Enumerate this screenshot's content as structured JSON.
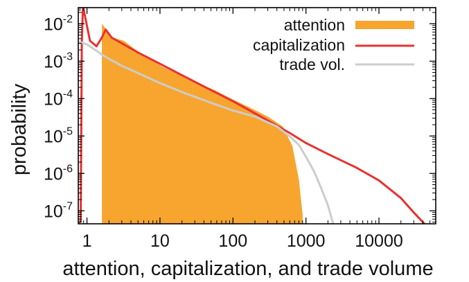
{
  "chart_data": {
    "type": "area",
    "xlabel": "attention, capitalization, and trade volume",
    "ylabel": "probability",
    "xscale": "log",
    "yscale": "log",
    "xlim": [
      0.76,
      60000
    ],
    "ylim": [
      4.5e-08,
      0.027
    ],
    "x_ticks": [
      1,
      10,
      100,
      1000,
      10000
    ],
    "x_tick_labels": [
      "1",
      "10",
      "100",
      "1000",
      "10000"
    ],
    "y_ticks": [
      {
        "value": 0.01,
        "base": "10",
        "exp": "-2"
      },
      {
        "value": 0.001,
        "base": "10",
        "exp": "-3"
      },
      {
        "value": 0.0001,
        "base": "10",
        "exp": "-4"
      },
      {
        "value": 1e-05,
        "base": "10",
        "exp": "-5"
      },
      {
        "value": 1e-06,
        "base": "10",
        "exp": "-6"
      },
      {
        "value": 1e-07,
        "base": "10",
        "exp": "-7"
      }
    ],
    "legend_position": "top-right",
    "series": [
      {
        "name": "attention",
        "style": "filled-area",
        "color": "#f7a52e",
        "x": [
          1.6,
          1.6,
          2.2,
          2.2,
          3.2,
          4.5,
          7,
          11,
          18,
          30,
          55,
          100,
          170,
          300,
          480,
          650,
          800,
          900,
          900
        ],
        "y": [
          4e-08,
          0.01,
          0.0045,
          0.0043,
          0.0035,
          0.0021,
          0.0012,
          0.0007,
          0.00045,
          0.00028,
          0.00017,
          9.4e-05,
          5.8e-05,
          3.3e-05,
          1.8e-05,
          5.5e-06,
          7e-07,
          8e-08,
          4e-08
        ]
      },
      {
        "name": "capitalization",
        "style": "line",
        "color": "#e8312f",
        "x": [
          0.82,
          0.85,
          0.88,
          1.1,
          1.35,
          1.6,
          1.8,
          2.2,
          3,
          5,
          10,
          30,
          100,
          300,
          600,
          1000,
          2000,
          5000,
          10000,
          20000,
          30000,
          42000
        ],
        "y": [
          5e-08,
          0.003,
          0.03,
          0.0035,
          0.0025,
          0.0043,
          0.007,
          0.0042,
          0.003,
          0.0017,
          0.00085,
          0.00028,
          8.5e-05,
          2.6e-05,
          1.2e-05,
          6.5e-06,
          3.3e-06,
          1.4e-06,
          6.5e-07,
          2.2e-07,
          9e-08,
          4.5e-08
        ]
      },
      {
        "name": "trade vol.",
        "style": "line",
        "color": "#cccccc",
        "x": [
          0.78,
          1,
          1.3,
          1.6,
          2,
          3,
          5,
          10,
          20,
          50,
          100,
          200,
          400,
          600,
          800,
          1000,
          1300,
          1600,
          2000,
          2400
        ],
        "y": [
          0.0033,
          0.0028,
          0.002,
          0.0015,
          0.00115,
          0.00075,
          0.00048,
          0.00026,
          0.00015,
          7.7e-05,
          4.8e-05,
          3.3e-05,
          1.8e-05,
          9.8e-06,
          5.8e-06,
          2.8e-06,
          1.1e-06,
          4.2e-07,
          1.4e-07,
          4e-08
        ]
      }
    ]
  }
}
